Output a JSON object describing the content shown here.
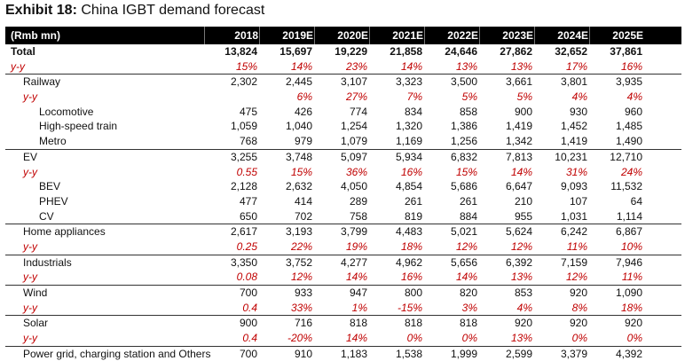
{
  "title": {
    "bold": "Exhibit 18:",
    "text": "China IGBT demand forecast"
  },
  "header": {
    "label": "(Rmb mn)",
    "years": [
      "2018",
      "2019E",
      "2020E",
      "2021E",
      "2022E",
      "2023E",
      "2024E",
      "2025E"
    ]
  },
  "rows": [
    {
      "label": "Total",
      "values": [
        "13,824",
        "15,697",
        "19,229",
        "21,858",
        "24,646",
        "27,862",
        "32,652",
        "37,861"
      ]
    },
    {
      "label": "y-y",
      "values": [
        "15%",
        "14%",
        "23%",
        "14%",
        "13%",
        "13%",
        "17%",
        "16%"
      ]
    },
    {
      "label": "Railway",
      "values": [
        "2,302",
        "2,445",
        "3,107",
        "3,323",
        "3,500",
        "3,661",
        "3,801",
        "3,935"
      ]
    },
    {
      "label": "y-y",
      "values": [
        "",
        "6%",
        "27%",
        "7%",
        "5%",
        "5%",
        "4%",
        "4%"
      ]
    },
    {
      "label": "Locomotive",
      "values": [
        "475",
        "426",
        "774",
        "834",
        "858",
        "900",
        "930",
        "960"
      ]
    },
    {
      "label": "High-speed train",
      "values": [
        "1,059",
        "1,040",
        "1,254",
        "1,320",
        "1,386",
        "1,419",
        "1,452",
        "1,485"
      ]
    },
    {
      "label": "Metro",
      "values": [
        "768",
        "979",
        "1,079",
        "1,169",
        "1,256",
        "1,342",
        "1,419",
        "1,490"
      ]
    },
    {
      "label": "EV",
      "values": [
        "3,255",
        "3,748",
        "5,097",
        "5,934",
        "6,832",
        "7,813",
        "10,231",
        "12,710"
      ]
    },
    {
      "label": "y-y",
      "values": [
        "0.55",
        "15%",
        "36%",
        "16%",
        "15%",
        "14%",
        "31%",
        "24%"
      ]
    },
    {
      "label": "BEV",
      "values": [
        "2,128",
        "2,632",
        "4,050",
        "4,854",
        "5,686",
        "6,647",
        "9,093",
        "11,532"
      ]
    },
    {
      "label": "PHEV",
      "values": [
        "477",
        "414",
        "289",
        "261",
        "261",
        "210",
        "107",
        "64"
      ]
    },
    {
      "label": "CV",
      "values": [
        "650",
        "702",
        "758",
        "819",
        "884",
        "955",
        "1,031",
        "1,114"
      ]
    },
    {
      "label": "Home appliances",
      "values": [
        "2,617",
        "3,193",
        "3,799",
        "4,483",
        "5,021",
        "5,624",
        "6,242",
        "6,867"
      ]
    },
    {
      "label": "y-y",
      "values": [
        "0.25",
        "22%",
        "19%",
        "18%",
        "12%",
        "12%",
        "11%",
        "10%"
      ]
    },
    {
      "label": "Industrials",
      "values": [
        "3,350",
        "3,752",
        "4,277",
        "4,962",
        "5,656",
        "6,392",
        "7,159",
        "7,946"
      ]
    },
    {
      "label": "y-y",
      "values": [
        "0.08",
        "12%",
        "14%",
        "16%",
        "14%",
        "13%",
        "12%",
        "11%"
      ]
    },
    {
      "label": "Wind",
      "values": [
        "700",
        "933",
        "947",
        "800",
        "820",
        "853",
        "920",
        "1,090"
      ]
    },
    {
      "label": "y-y",
      "values": [
        "0.4",
        "33%",
        "1%",
        "-15%",
        "3%",
        "4%",
        "8%",
        "18%"
      ]
    },
    {
      "label": "Solar",
      "values": [
        "900",
        "716",
        "818",
        "818",
        "818",
        "920",
        "920",
        "920"
      ]
    },
    {
      "label": "y-y",
      "values": [
        "0.4",
        "-20%",
        "14%",
        "0%",
        "0%",
        "13%",
        "0%",
        "0%"
      ]
    },
    {
      "label": "Power grid, charging station and Others",
      "values": [
        "700",
        "910",
        "1,183",
        "1,538",
        "1,999",
        "2,599",
        "3,379",
        "4,392"
      ]
    }
  ]
}
